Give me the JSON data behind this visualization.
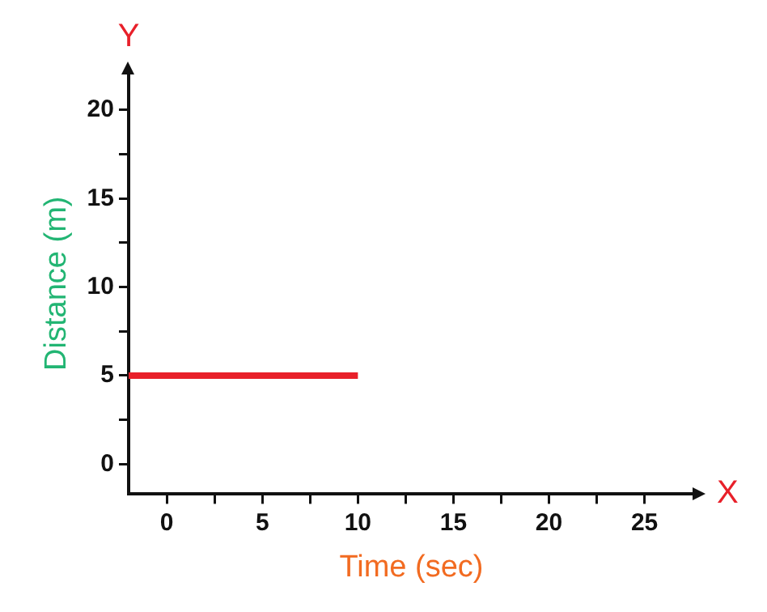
{
  "chart_data": {
    "type": "line",
    "xlabel": "Time (sec)",
    "ylabel": "Distance (m)",
    "annotations": [
      "Y",
      "X"
    ],
    "x": [
      -2,
      10
    ],
    "series": [
      {
        "color": "#e8202a",
        "values": [
          5,
          5
        ]
      }
    ],
    "xlim": [
      -2,
      27.6
    ],
    "ylim": [
      -1.7,
      22.1
    ],
    "xticks": [
      0,
      {
        "value": 2.5,
        "label": null
      },
      5,
      {
        "value": 7.5,
        "label": null
      },
      10,
      {
        "value": 12.5,
        "label": null
      },
      15,
      {
        "value": 17.5,
        "label": null
      },
      20,
      {
        "value": 22.5,
        "label": null
      },
      25
    ],
    "yticks": [
      0,
      {
        "value": 2.5,
        "label": null
      },
      5,
      {
        "value": 7.5,
        "label": null
      },
      10,
      {
        "value": 12.5,
        "label": null
      },
      15,
      {
        "value": 17.5,
        "label": null
      },
      20
    ],
    "grid": false,
    "legend": false,
    "marker": "none",
    "line_style": "solid"
  }
}
